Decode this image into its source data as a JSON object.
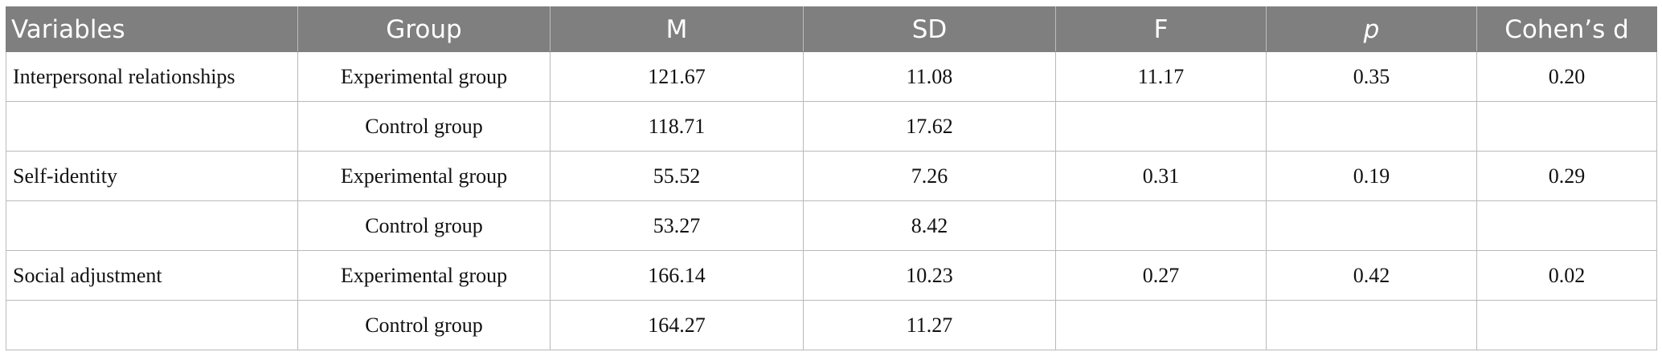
{
  "table": {
    "headers": [
      "Variables",
      "Group",
      "M",
      "SD",
      "F",
      "p",
      "Cohen’s d"
    ],
    "rows": [
      [
        "Interpersonal relationships",
        "Experimental group",
        "121.67",
        "11.08",
        "11.17",
        "0.35",
        "0.20"
      ],
      [
        "",
        "Control group",
        "118.71",
        "17.62",
        "",
        "",
        ""
      ],
      [
        "Self-identity",
        "Experimental group",
        "55.52",
        "7.26",
        "0.31",
        "0.19",
        "0.29"
      ],
      [
        "",
        "Control group",
        "53.27",
        "8.42",
        "",
        "",
        ""
      ],
      [
        "Social adjustment",
        "Experimental group",
        "166.14",
        "10.23",
        "0.27",
        "0.42",
        "0.02"
      ],
      [
        "",
        "Control group",
        "164.27",
        "11.27",
        "",
        "",
        ""
      ]
    ]
  },
  "colors": {
    "header_background": "#7f7f7f",
    "header_text": "#ffffff",
    "grid_line": "#b9b9b9"
  }
}
